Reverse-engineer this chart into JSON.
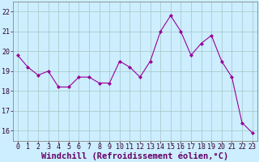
{
  "x": [
    0,
    1,
    2,
    3,
    4,
    5,
    6,
    7,
    8,
    9,
    10,
    11,
    12,
    13,
    14,
    15,
    16,
    17,
    18,
    19,
    20,
    21,
    22,
    23
  ],
  "y": [
    19.8,
    19.2,
    18.8,
    19.0,
    18.2,
    18.2,
    18.7,
    18.7,
    18.4,
    18.4,
    19.5,
    19.2,
    18.7,
    19.5,
    21.0,
    21.8,
    21.0,
    19.8,
    20.4,
    20.8,
    19.5,
    18.7,
    16.4,
    15.9
  ],
  "line_color": "#990099",
  "marker": "D",
  "marker_size": 2,
  "bg_color": "#cceeff",
  "grid_color": "#aacccc",
  "xlabel": "Windchill (Refroidissement éolien,°C)",
  "xlabel_color": "#660066",
  "ylim": [
    15.5,
    22.5
  ],
  "yticks": [
    16,
    17,
    18,
    19,
    20,
    21,
    22
  ],
  "xticks": [
    0,
    1,
    2,
    3,
    4,
    5,
    6,
    7,
    8,
    9,
    10,
    11,
    12,
    13,
    14,
    15,
    16,
    17,
    18,
    19,
    20,
    21,
    22,
    23
  ],
  "tick_fontsize": 6,
  "xlabel_fontsize": 7.5,
  "spine_color": "#888888"
}
